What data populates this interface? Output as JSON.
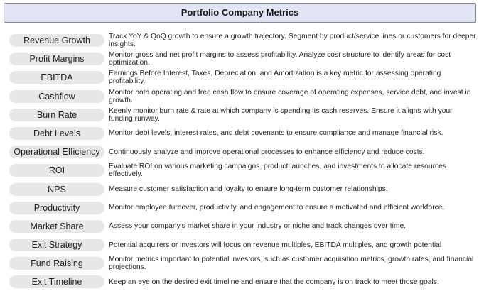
{
  "title": "Portfolio Company Metrics",
  "metrics": [
    {
      "name": "Revenue Growth",
      "description": "Track YoY & QoQ growth to ensure a growth trajectory. Segment by product/service lines or customers for deeper insights."
    },
    {
      "name": "Profit Margins",
      "description": "Monitor gross and net profit margins to assess profitability. Analyze cost structure to identify areas for cost optimization."
    },
    {
      "name": "EBITDA",
      "description": "Earnings Before Interest, Taxes, Depreciation, and Amortization is a key metric for assessing operating profitability."
    },
    {
      "name": "Cashflow",
      "description": "Monitor both operating and free cash flow to ensure coverage of operating expenses, service debt, and invest in growth."
    },
    {
      "name": "Burn Rate",
      "description": "Keenly monitor burn rate & rate at which company is spending its cash reserves. Ensure it aligns with your funding runway."
    },
    {
      "name": "Debt Levels",
      "description": "Monitor debt levels, interest rates, and debt covenants to ensure compliance and manage financial risk."
    },
    {
      "name": "Operational Efficiency",
      "description": "Continuously analyze and improve operational processes to enhance efficiency and reduce costs."
    },
    {
      "name": "ROI",
      "description": "Evaluate ROI on various marketing campaigns, product launches, and investments to allocate resources effectively."
    },
    {
      "name": "NPS",
      "description": "Measure customer satisfaction and loyalty to ensure long-term customer relationships."
    },
    {
      "name": "Productivity",
      "description": "Monitor employee turnover, productivity, and engagement to ensure a motivated and efficient workforce."
    },
    {
      "name": "Market Share",
      "description": "Assess your company's market share in your industry or niche and track changes over time."
    },
    {
      "name": "Exit Strategy",
      "description": "Potential acquirers or investors will focus on revenue multiples, EBITDA multiples, and growth potential"
    },
    {
      "name": "Fund Raising",
      "description": "Monitor metrics important to potential investors, such as customer acquisition metrics, growth rates, and financial projections."
    },
    {
      "name": "Exit Timeline",
      "description": "Keep an eye on the desired exit timeline and ensure that the company is on track to meet those goals."
    }
  ]
}
